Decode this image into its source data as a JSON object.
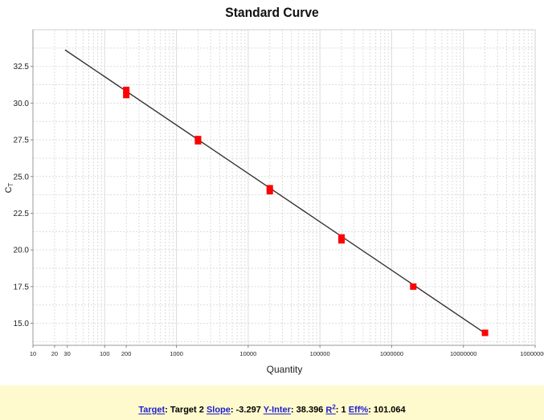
{
  "chart_data": {
    "type": "scatter",
    "title": "Standard Curve",
    "xlabel": "Quantity",
    "ylabel": "CT",
    "x_scale": "log",
    "xlim": [
      10,
      100000000
    ],
    "ylim": [
      13.5,
      35.0
    ],
    "x_tick_labels": [
      {
        "value": 10,
        "label": "10"
      },
      {
        "value": 20,
        "label": "20"
      },
      {
        "value": 30,
        "label": "30"
      },
      {
        "value": 100,
        "label": "100"
      },
      {
        "value": 200,
        "label": "200"
      },
      {
        "value": 1000,
        "label": "1000"
      },
      {
        "value": 10000,
        "label": "10000"
      },
      {
        "value": 100000,
        "label": "100000"
      },
      {
        "value": 1000000,
        "label": "1000000"
      },
      {
        "value": 10000000,
        "label": "10000000"
      },
      {
        "value": 100000000,
        "label": "100000000"
      }
    ],
    "y_ticks": [
      "15.0",
      "17.5",
      "20.0",
      "22.5",
      "25.0",
      "27.5",
      "30.0",
      "32.5"
    ],
    "grid": true,
    "marker_color": "#ff0000",
    "line_color": "#333333",
    "points": [
      {
        "x": 200,
        "y": 30.9
      },
      {
        "x": 200,
        "y": 30.55
      },
      {
        "x": 2000,
        "y": 27.55
      },
      {
        "x": 2000,
        "y": 27.4
      },
      {
        "x": 20000,
        "y": 24.2
      },
      {
        "x": 20000,
        "y": 24.0
      },
      {
        "x": 200000,
        "y": 20.85
      },
      {
        "x": 200000,
        "y": 20.65
      },
      {
        "x": 2000000,
        "y": 17.5
      },
      {
        "x": 20000000,
        "y": 14.35
      }
    ],
    "fit": {
      "slope": -3.297,
      "intercept": 38.396,
      "x_start": 28,
      "x_end": 20000000
    }
  },
  "footer": {
    "target_label": "Target",
    "target_value": "Target 2",
    "slope_label": "Slope",
    "slope_value": "-3.297",
    "yinter_label": "Y-Inter",
    "yinter_value": "38.396",
    "r2_label": "R",
    "r2_sup": "2",
    "r2_value": "1",
    "eff_label": "Eff%",
    "eff_value": "101.064"
  }
}
